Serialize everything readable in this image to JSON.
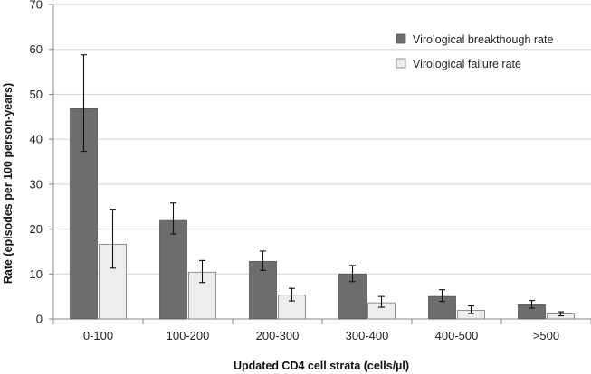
{
  "chart_data": {
    "type": "bar",
    "title": "",
    "xlabel": "Updated CD4 cell strata (cells/µl)",
    "ylabel": "Rate (episodes per 100 person-years)",
    "ylim": [
      0,
      70
    ],
    "yticks": [
      0,
      10,
      20,
      30,
      40,
      50,
      60,
      70
    ],
    "categories": [
      "0-100",
      "100-200",
      "200-300",
      "300-400",
      "400-500",
      ">500"
    ],
    "legend_position": "top-right",
    "series": [
      {
        "name": "Virological breakthough rate",
        "color": "#6d6d6d",
        "values": [
          46.8,
          22.1,
          12.8,
          10.0,
          5.0,
          3.2
        ],
        "error_low": [
          37.3,
          18.9,
          10.8,
          8.3,
          3.9,
          2.4
        ],
        "error_high": [
          58.8,
          25.8,
          15.1,
          11.9,
          6.5,
          4.1
        ]
      },
      {
        "name": "Virological failure rate",
        "color": "#ededed",
        "values": [
          16.6,
          10.4,
          5.3,
          3.6,
          1.9,
          1.1
        ],
        "error_low": [
          11.3,
          8.1,
          4.0,
          2.6,
          1.2,
          0.7
        ],
        "error_high": [
          24.4,
          13.0,
          6.8,
          5.0,
          2.9,
          1.6
        ]
      }
    ]
  }
}
